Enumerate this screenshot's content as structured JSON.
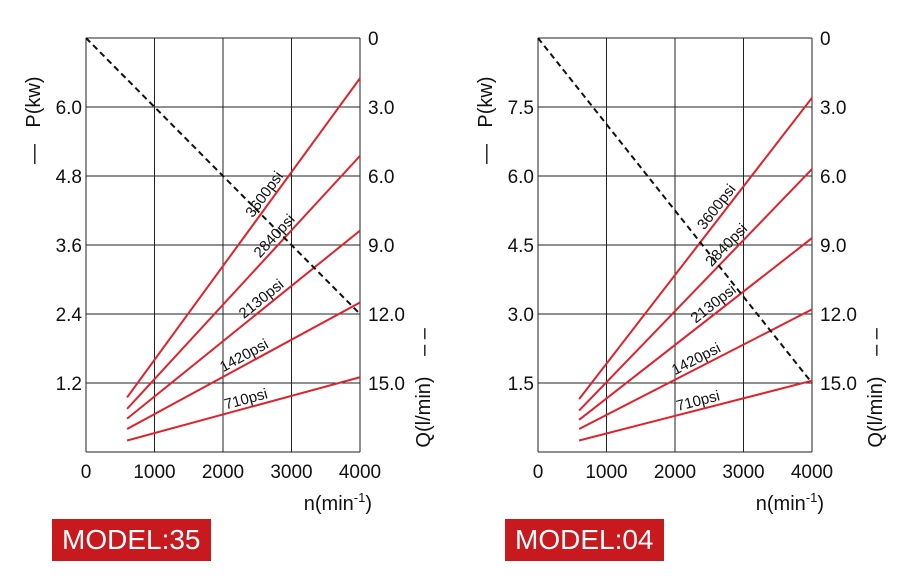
{
  "colors": {
    "power_line": "#e2212b",
    "flow_line": "#111111",
    "grid": "#222222",
    "label_bg": "#c8191f"
  },
  "chart_data": [
    {
      "type": "line",
      "model_label": "MODEL:35",
      "xlabel": "n(min",
      "xlabel_sup": "-1",
      "xlabel_close": ")",
      "ylabel_left": "P(kw)",
      "ylabel_left_marker": "—",
      "ylabel_right": "Q(l/min)",
      "ylabel_right_marker": "– –",
      "xlim": [
        0,
        4000
      ],
      "x_ticks": [
        "0",
        "1000",
        "2000",
        "3000",
        "4000"
      ],
      "ylim_left": [
        0,
        7.2
      ],
      "y_ticks_left": [
        "1.2",
        "2.4",
        "3.6",
        "4.8",
        "6.0"
      ],
      "ylim_right": [
        0,
        18.0
      ],
      "y_ticks_right": [
        "0",
        "3.0",
        "6.0",
        "9.0",
        "12.0",
        "15.0"
      ],
      "series": [
        {
          "name": "3600psi",
          "axis": "P",
          "x": [
            600,
            4000
          ],
          "y": [
            0.95,
            6.5
          ]
        },
        {
          "name": "2840psi",
          "axis": "P",
          "x": [
            600,
            4000
          ],
          "y": [
            0.75,
            5.15
          ]
        },
        {
          "name": "2130psi",
          "axis": "P",
          "x": [
            600,
            4000
          ],
          "y": [
            0.58,
            3.85
          ]
        },
        {
          "name": "1420psi",
          "axis": "P",
          "x": [
            600,
            4000
          ],
          "y": [
            0.4,
            2.6
          ]
        },
        {
          "name": "710psi",
          "axis": "P",
          "x": [
            600,
            4000
          ],
          "y": [
            0.2,
            1.3
          ]
        },
        {
          "name": "Q",
          "axis": "Q",
          "x": [
            0,
            4000
          ],
          "y": [
            0,
            12.0
          ]
        }
      ]
    },
    {
      "type": "line",
      "model_label": "MODEL:04",
      "xlabel": "n(min",
      "xlabel_sup": "-1",
      "xlabel_close": ")",
      "ylabel_left": "P(kw)",
      "ylabel_left_marker": "—",
      "ylabel_right": "Q(l/min)",
      "ylabel_right_marker": "– –",
      "xlim": [
        0,
        4000
      ],
      "x_ticks": [
        "0",
        "1000",
        "2000",
        "3000",
        "4000"
      ],
      "ylim_left": [
        0,
        9.0
      ],
      "y_ticks_left": [
        "1.5",
        "3.0",
        "4.5",
        "6.0",
        "7.5"
      ],
      "ylim_right": [
        0,
        18.0
      ],
      "y_ticks_right": [
        "0",
        "3.0",
        "6.0",
        "9.0",
        "12.0",
        "15.0"
      ],
      "series": [
        {
          "name": "3600psi",
          "axis": "P",
          "x": [
            600,
            4000
          ],
          "y": [
            1.15,
            7.7
          ]
        },
        {
          "name": "2840psi",
          "axis": "P",
          "x": [
            600,
            4000
          ],
          "y": [
            0.9,
            6.15
          ]
        },
        {
          "name": "2130psi",
          "axis": "P",
          "x": [
            600,
            4000
          ],
          "y": [
            0.7,
            4.65
          ]
        },
        {
          "name": "1420psi",
          "axis": "P",
          "x": [
            600,
            4000
          ],
          "y": [
            0.5,
            3.1
          ]
        },
        {
          "name": "710psi",
          "axis": "P",
          "x": [
            600,
            4000
          ],
          "y": [
            0.25,
            1.55
          ]
        },
        {
          "name": "Q",
          "axis": "Q",
          "x": [
            0,
            4000
          ],
          "y": [
            0,
            15.0
          ]
        }
      ]
    }
  ]
}
